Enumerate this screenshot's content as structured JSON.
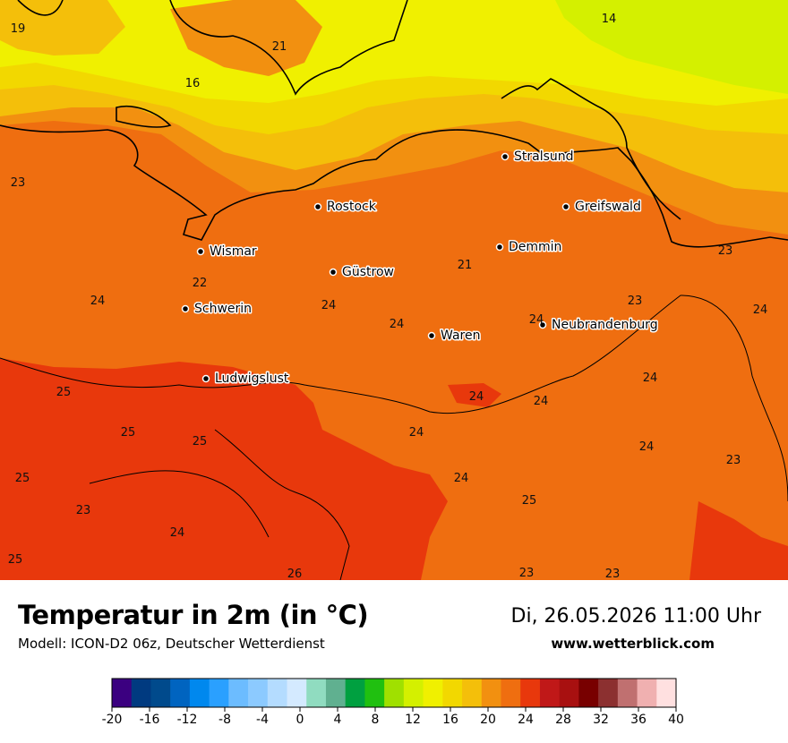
{
  "header": {
    "title": "Temperatur in 2m (in °C)",
    "subtitle": "Modell: ICON-D2 06z, Deutscher Wetterdienst",
    "datetime": "Di, 26.05.2026 11:00 Uhr",
    "website": "www.wetterblick.com"
  },
  "map": {
    "colors": {
      "c14": "#d4f000",
      "c16": "#f0f000",
      "c18": "#f2d800",
      "c20": "#f4bf0a",
      "c22": "#f29010",
      "c24": "#ef6e10",
      "c26": "#e8380c"
    },
    "cities": [
      {
        "id": "stralsund",
        "name": "Stralsund"
      },
      {
        "id": "rostock",
        "name": "Rostock"
      },
      {
        "id": "greifswald",
        "name": "Greifswald"
      },
      {
        "id": "wismar",
        "name": "Wismar"
      },
      {
        "id": "demmin",
        "name": "Demmin"
      },
      {
        "id": "guestrow",
        "name": "Güstrow"
      },
      {
        "id": "schwerin",
        "name": "Schwerin"
      },
      {
        "id": "neubrandenburg",
        "name": "Neubrandenburg"
      },
      {
        "id": "waren",
        "name": "Waren"
      },
      {
        "id": "ludwigslust",
        "name": "Ludwigslust"
      }
    ],
    "values": [
      "19",
      "14",
      "21",
      "16",
      "23",
      "23",
      "22",
      "24",
      "21",
      "24",
      "24",
      "24",
      "23",
      "24",
      "25",
      "24",
      "24",
      "24",
      "24",
      "25",
      "25",
      "24",
      "25",
      "23",
      "24",
      "24",
      "25",
      "23",
      "25",
      "26",
      "23",
      "23"
    ]
  },
  "legend": {
    "colors": [
      "#3b0080",
      "#003a80",
      "#004a8c",
      "#0064c0",
      "#0088ee",
      "#2aa0ff",
      "#6cbcff",
      "#8ccaff",
      "#b4dcff",
      "#d4eaff",
      "#90dcc0",
      "#60b090",
      "#00a040",
      "#20c010",
      "#a0e000",
      "#d4f000",
      "#f0f000",
      "#f2d800",
      "#f4bf0a",
      "#f29010",
      "#ef6e10",
      "#e8380c",
      "#c01818",
      "#a81010",
      "#780000",
      "#8c3030",
      "#c07070",
      "#f0b0b0",
      "#ffe0e0"
    ],
    "ticks": [
      "-20",
      "-16",
      "-12",
      "-8",
      "-4",
      "0",
      "4",
      "8",
      "12",
      "16",
      "20",
      "24",
      "28",
      "32",
      "36",
      "40"
    ]
  }
}
